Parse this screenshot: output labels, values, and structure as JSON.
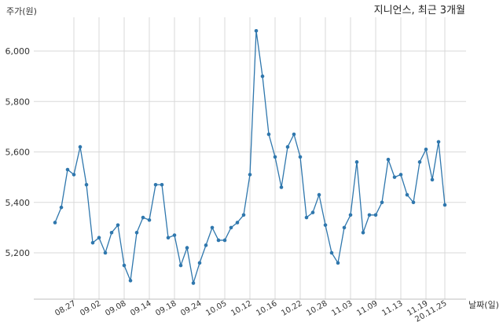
{
  "chart_data": {
    "type": "line",
    "title": "지니언스, 최근 3개월",
    "ylabel": "주가(원)",
    "xlabel": "날짜(일)",
    "ylim": [
      5050,
      6150
    ],
    "yticks": [
      5200,
      5400,
      5600,
      5800,
      6000
    ],
    "ytick_labels": [
      "5,200",
      "5,400",
      "5,600",
      "5,800",
      "6,000"
    ],
    "xtick_labels": [
      "08.27",
      "09.02",
      "09.08",
      "09.14",
      "09.18",
      "09.24",
      "10.05",
      "10.12",
      "10.16",
      "10.22",
      "10.28",
      "11.03",
      "11.09",
      "11.13",
      "11.19",
      "20.11.25"
    ],
    "grid": true,
    "color": "#2f77ad",
    "series": [
      {
        "values": [
          5320,
          5380,
          5530,
          5510,
          5620,
          5470,
          5240,
          5260,
          5200,
          5280,
          5310,
          5150,
          5090,
          5280,
          5340,
          5330,
          5470,
          5470,
          5260,
          5270,
          5150,
          5220,
          5080,
          5160,
          5230,
          5300,
          5250,
          5250,
          5300,
          5320,
          5350,
          5510,
          6080,
          5900,
          5670,
          5580,
          5460,
          5620,
          5670,
          5580,
          5340,
          5360,
          5430,
          5310,
          5200,
          5160,
          5300,
          5350,
          5560,
          5280,
          5350,
          5350,
          5400,
          5570,
          5500,
          5510,
          5430,
          5400,
          5560,
          5610,
          5490,
          5640,
          5390
        ]
      }
    ]
  }
}
